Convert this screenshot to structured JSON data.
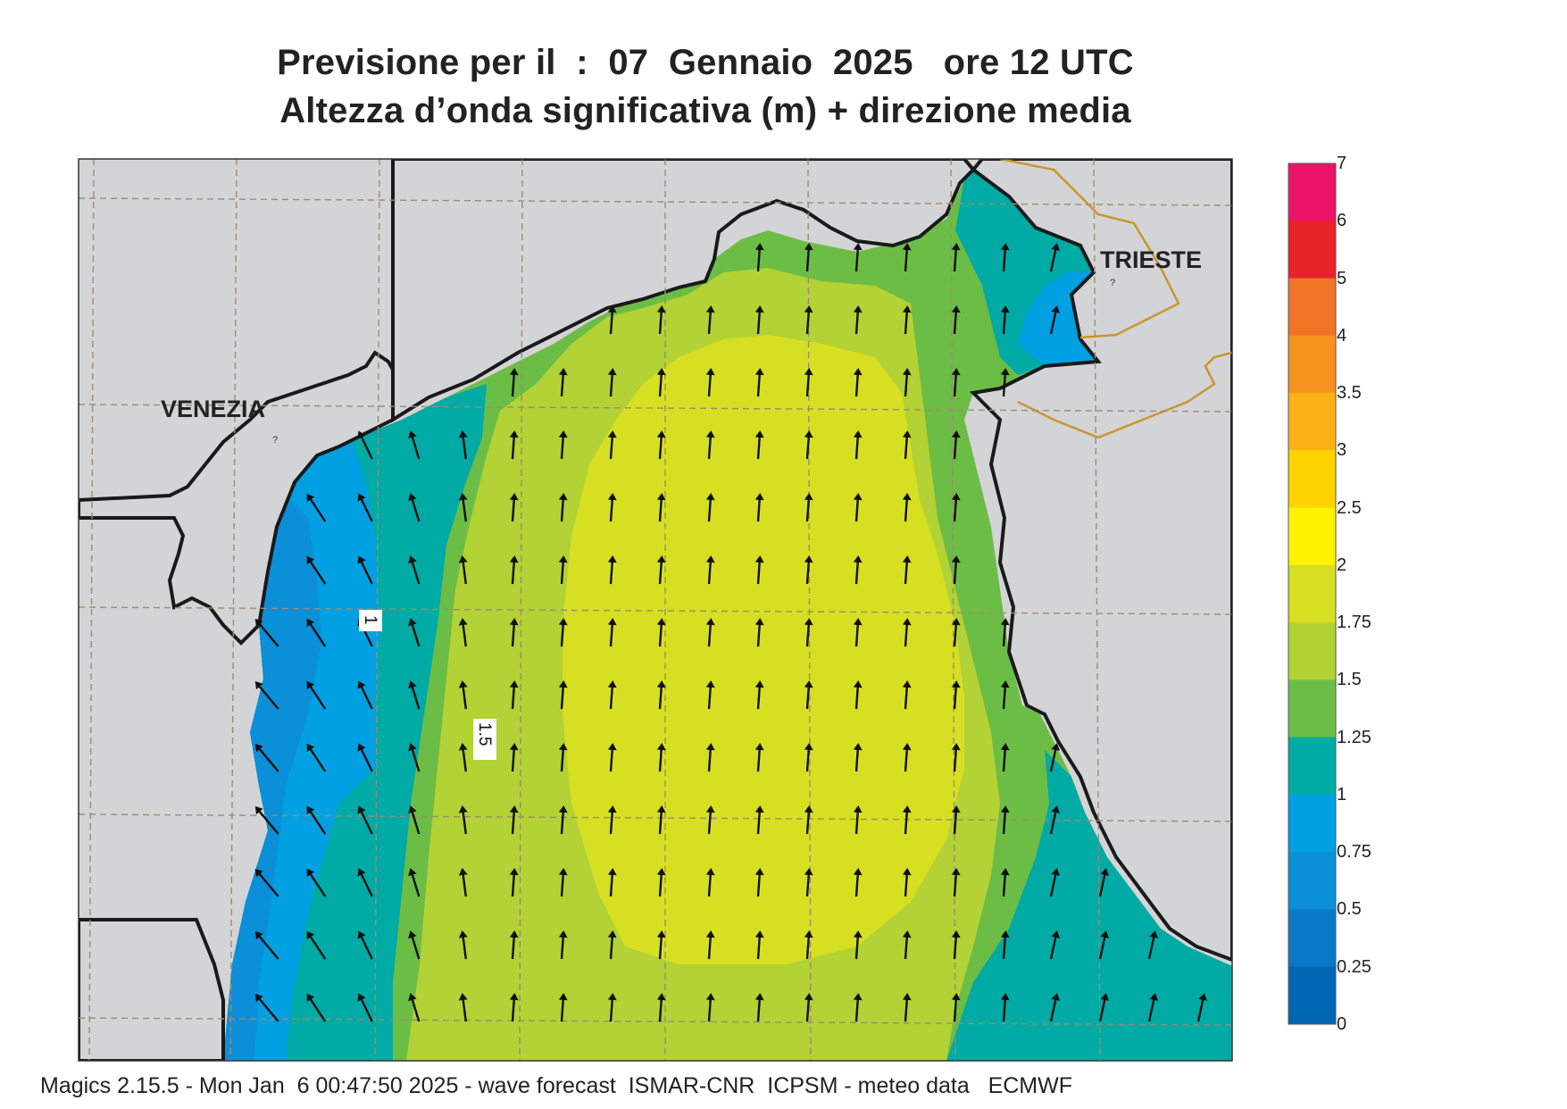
{
  "header": {
    "title_line1": "Previsione per il  :  07  Gennaio  2025   ore 12 UTC",
    "title_line2": "Altezza d’onda significativa (m) + direzione media"
  },
  "map": {
    "cities": {
      "venezia": "VENEZIA",
      "trieste": "TRIESTE"
    },
    "contour_labels": {
      "one": "1",
      "one_point_five": "1.5"
    },
    "land_color": "#d3d4d6",
    "grid_color": "#a08a70",
    "coast_color": "#1a1a1a",
    "border_color": "#c8962e",
    "wave_direction": "toward north"
  },
  "colorbar": {
    "labels": [
      "7",
      "6",
      "5",
      "4",
      "3.5",
      "3",
      "2.5",
      "2",
      "1.75",
      "1.5",
      "1.25",
      "1",
      "0.75",
      "0.5",
      "0.25",
      "0"
    ],
    "colors": [
      "#ec1469",
      "#e8242a",
      "#f17426",
      "#f7931e",
      "#fbb016",
      "#fdd400",
      "#fff200",
      "#d7df23",
      "#b2d235",
      "#6cbd45",
      "#00aaa5",
      "#00a0e3",
      "#0b8fd8",
      "#0a78c6",
      "#0066b3"
    ]
  },
  "footer": {
    "text": "Magics 2.15.5 - Mon Jan  6 00:47:50 2025 - wave forecast  ISMAR-CNR  ICPSM - meteo data   ECMWF"
  }
}
